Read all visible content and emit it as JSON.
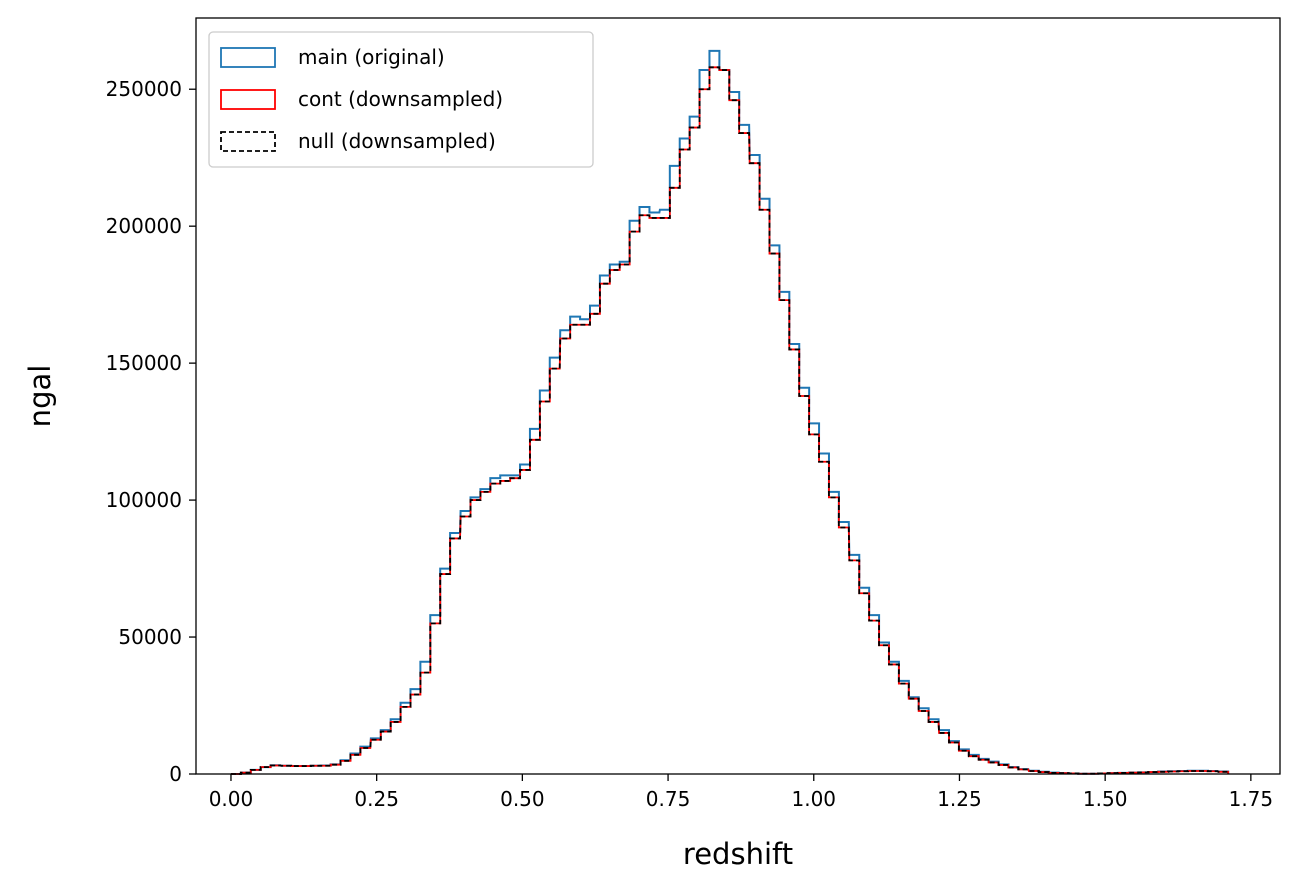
{
  "chart_data": {
    "type": "histogram-step",
    "xlabel": "redshift",
    "ylabel": "ngal",
    "xlim": [
      -0.06,
      1.8
    ],
    "ylim": [
      0,
      276000
    ],
    "grid": false,
    "legend_position": "top-left",
    "bin_width": 0.0171,
    "x_ticks": [
      0.0,
      0.25,
      0.5,
      0.75,
      1.0,
      1.25,
      1.5,
      1.75
    ],
    "x_tick_labels": [
      "0.00",
      "0.25",
      "0.50",
      "0.75",
      "1.00",
      "1.25",
      "1.50",
      "1.75"
    ],
    "y_ticks": [
      0,
      50000,
      100000,
      150000,
      200000,
      250000
    ],
    "y_tick_labels": [
      "0",
      "50000",
      "100000",
      "150000",
      "200000",
      "250000"
    ],
    "series": [
      {
        "name": "main (original)",
        "color": "#1f77b4",
        "style": "solid",
        "x": [
          0.0,
          0.017,
          0.034,
          0.051,
          0.068,
          0.086,
          0.103,
          0.12,
          0.137,
          0.154,
          0.171,
          0.188,
          0.205,
          0.222,
          0.24,
          0.257,
          0.274,
          0.291,
          0.308,
          0.325,
          0.342,
          0.359,
          0.376,
          0.394,
          0.411,
          0.428,
          0.445,
          0.462,
          0.479,
          0.496,
          0.513,
          0.53,
          0.547,
          0.565,
          0.582,
          0.599,
          0.616,
          0.633,
          0.65,
          0.667,
          0.684,
          0.701,
          0.718,
          0.736,
          0.753,
          0.77,
          0.787,
          0.804,
          0.821,
          0.838,
          0.855,
          0.872,
          0.89,
          0.907,
          0.924,
          0.941,
          0.958,
          0.975,
          0.992,
          1.009,
          1.026,
          1.043,
          1.061,
          1.078,
          1.095,
          1.112,
          1.129,
          1.146,
          1.163,
          1.18,
          1.197,
          1.215,
          1.232,
          1.249,
          1.266,
          1.283,
          1.3,
          1.317,
          1.334,
          1.351,
          1.369,
          1.386,
          1.403,
          1.42,
          1.437,
          1.454,
          1.471,
          1.488,
          1.505,
          1.522,
          1.54,
          1.557,
          1.574,
          1.591,
          1.608,
          1.625,
          1.642,
          1.659,
          1.676,
          1.694
        ],
        "values": [
          0,
          500,
          1500,
          2500,
          3200,
          3000,
          2900,
          2900,
          3000,
          3100,
          3500,
          5000,
          7500,
          10000,
          13000,
          16000,
          20000,
          26000,
          31000,
          41000,
          58000,
          75000,
          88000,
          96000,
          101000,
          104000,
          108000,
          109000,
          109000,
          113000,
          126000,
          140000,
          152000,
          162000,
          167000,
          166000,
          171000,
          182000,
          186000,
          187000,
          202000,
          207000,
          205000,
          206000,
          222000,
          232000,
          240000,
          257000,
          264000,
          257000,
          249000,
          237000,
          226000,
          210000,
          193000,
          176000,
          157000,
          141000,
          128000,
          117000,
          103000,
          92000,
          80000,
          68000,
          58000,
          48000,
          41000,
          34000,
          28000,
          24000,
          20000,
          16000,
          12000,
          9000,
          7000,
          5500,
          4500,
          3500,
          2500,
          1800,
          1200,
          800,
          500,
          300,
          200,
          100,
          100,
          200,
          300,
          400,
          500,
          600,
          700,
          900,
          1000,
          1100,
          1200,
          1200,
          1100,
          900
        ]
      },
      {
        "name": "cont (downsampled)",
        "color": "#ff0000",
        "style": "solid",
        "x": [
          0.0,
          0.017,
          0.034,
          0.051,
          0.068,
          0.086,
          0.103,
          0.12,
          0.137,
          0.154,
          0.171,
          0.188,
          0.205,
          0.222,
          0.24,
          0.257,
          0.274,
          0.291,
          0.308,
          0.325,
          0.342,
          0.359,
          0.376,
          0.394,
          0.411,
          0.428,
          0.445,
          0.462,
          0.479,
          0.496,
          0.513,
          0.53,
          0.547,
          0.565,
          0.582,
          0.599,
          0.616,
          0.633,
          0.65,
          0.667,
          0.684,
          0.701,
          0.718,
          0.736,
          0.753,
          0.77,
          0.787,
          0.804,
          0.821,
          0.838,
          0.855,
          0.872,
          0.89,
          0.907,
          0.924,
          0.941,
          0.958,
          0.975,
          0.992,
          1.009,
          1.026,
          1.043,
          1.061,
          1.078,
          1.095,
          1.112,
          1.129,
          1.146,
          1.163,
          1.18,
          1.197,
          1.215,
          1.232,
          1.249,
          1.266,
          1.283,
          1.3,
          1.317,
          1.334,
          1.351,
          1.369,
          1.386,
          1.403,
          1.42,
          1.437,
          1.454,
          1.471,
          1.488,
          1.505,
          1.522,
          1.54,
          1.557,
          1.574,
          1.591,
          1.608,
          1.625,
          1.642,
          1.659,
          1.676,
          1.694
        ],
        "values": [
          0,
          500,
          1500,
          2500,
          3100,
          3000,
          2900,
          2900,
          3000,
          3000,
          3400,
          4800,
          7000,
          9500,
          12500,
          15500,
          19000,
          24500,
          29000,
          37000,
          55000,
          73000,
          86000,
          94000,
          100000,
          103000,
          106000,
          107000,
          108000,
          111000,
          122000,
          136000,
          148000,
          159000,
          164000,
          164000,
          168000,
          179000,
          184000,
          186000,
          198000,
          204000,
          203000,
          203000,
          214000,
          228000,
          236000,
          250000,
          258000,
          257000,
          246000,
          234000,
          223000,
          206000,
          190000,
          173000,
          155000,
          138000,
          124000,
          114000,
          101000,
          90000,
          78000,
          66000,
          56000,
          47000,
          40000,
          33000,
          27500,
          23000,
          19000,
          15000,
          11500,
          8500,
          6500,
          5200,
          4200,
          3300,
          2400,
          1700,
          1100,
          700,
          400,
          300,
          200,
          100,
          100,
          200,
          300,
          400,
          500,
          600,
          700,
          800,
          900,
          1000,
          1100,
          1100,
          1000,
          800
        ]
      },
      {
        "name": "null (downsampled)",
        "color": "#000000",
        "style": "dashed",
        "x": [
          0.0,
          0.017,
          0.034,
          0.051,
          0.068,
          0.086,
          0.103,
          0.12,
          0.137,
          0.154,
          0.171,
          0.188,
          0.205,
          0.222,
          0.24,
          0.257,
          0.274,
          0.291,
          0.308,
          0.325,
          0.342,
          0.359,
          0.376,
          0.394,
          0.411,
          0.428,
          0.445,
          0.462,
          0.479,
          0.496,
          0.513,
          0.53,
          0.547,
          0.565,
          0.582,
          0.599,
          0.616,
          0.633,
          0.65,
          0.667,
          0.684,
          0.701,
          0.718,
          0.736,
          0.753,
          0.77,
          0.787,
          0.804,
          0.821,
          0.838,
          0.855,
          0.872,
          0.89,
          0.907,
          0.924,
          0.941,
          0.958,
          0.975,
          0.992,
          1.009,
          1.026,
          1.043,
          1.061,
          1.078,
          1.095,
          1.112,
          1.129,
          1.146,
          1.163,
          1.18,
          1.197,
          1.215,
          1.232,
          1.249,
          1.266,
          1.283,
          1.3,
          1.317,
          1.334,
          1.351,
          1.369,
          1.386,
          1.403,
          1.42,
          1.437,
          1.454,
          1.471,
          1.488,
          1.505,
          1.522,
          1.54,
          1.557,
          1.574,
          1.591,
          1.608,
          1.625,
          1.642,
          1.659,
          1.676,
          1.694
        ],
        "values": [
          0,
          500,
          1500,
          2500,
          3100,
          3000,
          2900,
          2900,
          3000,
          3000,
          3400,
          4800,
          7000,
          9500,
          12500,
          15500,
          19000,
          24500,
          29000,
          37000,
          55000,
          73000,
          86000,
          94000,
          100000,
          103000,
          106000,
          107000,
          108000,
          111000,
          122000,
          136000,
          148000,
          159000,
          164000,
          164000,
          168000,
          179000,
          184000,
          186000,
          198000,
          204000,
          203000,
          203000,
          214000,
          228000,
          236000,
          250000,
          258000,
          257000,
          246000,
          234000,
          223000,
          206000,
          190000,
          173000,
          155000,
          138000,
          124000,
          114000,
          101000,
          90000,
          78000,
          66000,
          56000,
          47000,
          40000,
          33000,
          27500,
          23000,
          19000,
          15000,
          11500,
          8500,
          6500,
          5200,
          4200,
          3300,
          2400,
          1700,
          1100,
          700,
          400,
          300,
          200,
          100,
          100,
          200,
          300,
          400,
          500,
          600,
          700,
          800,
          900,
          1000,
          1100,
          1100,
          1000,
          800
        ]
      }
    ]
  }
}
